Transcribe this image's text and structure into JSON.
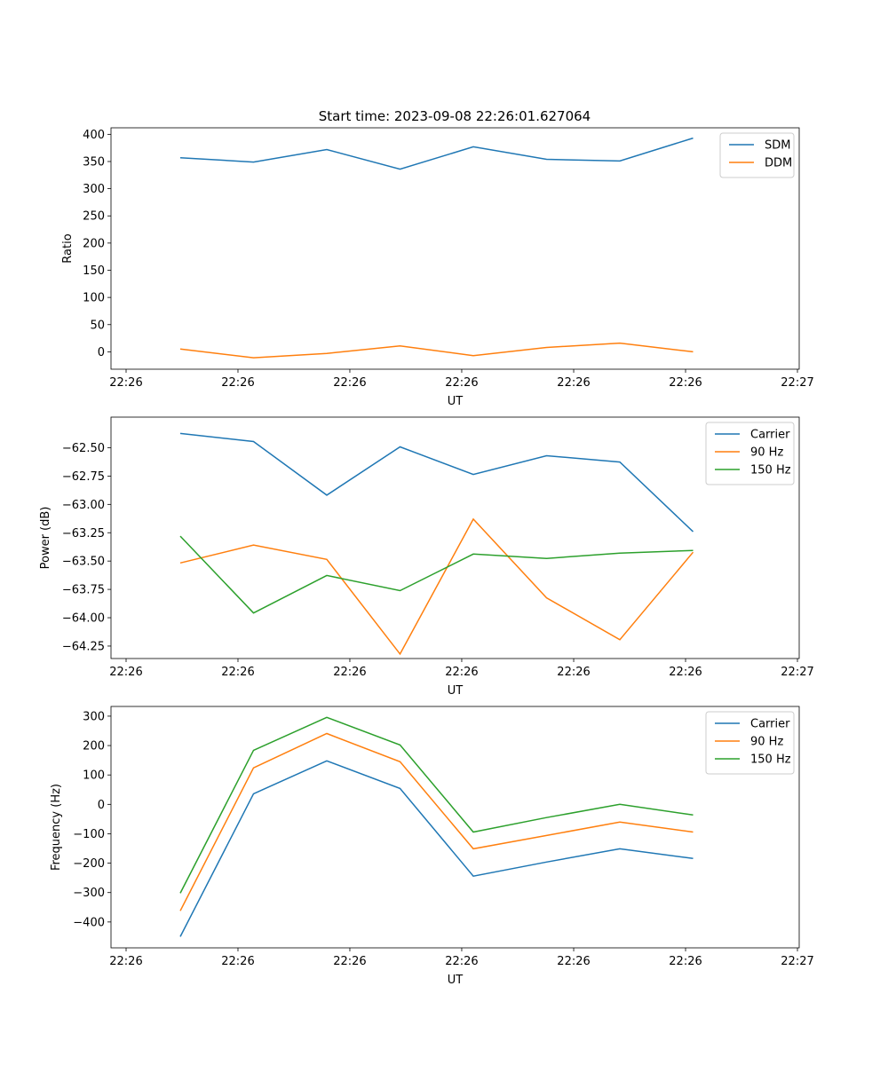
{
  "title": "Start time: 2023-09-08 22:26:01.627064",
  "colors": {
    "blue": "#1f77b4",
    "orange": "#ff7f0e",
    "green": "#2ca02c"
  },
  "chart_data": [
    {
      "type": "line",
      "xlabel": "UT",
      "ylabel": "Ratio",
      "x": [
        0,
        1,
        2,
        3,
        4,
        5,
        6,
        7
      ],
      "xlim": [
        -0.945,
        8.448
      ],
      "xticks": [
        -0.739,
        0.788,
        2.315,
        3.842,
        5.37,
        6.897,
        8.424
      ],
      "xtick_labels": [
        "22:26",
        "22:26",
        "22:26",
        "22:26",
        "22:26",
        "22:26",
        "22:27"
      ],
      "ylim": [
        -32,
        412
      ],
      "yticks": [
        0,
        50,
        100,
        150,
        200,
        250,
        300,
        350,
        400
      ],
      "ytick_labels": [
        "0",
        "50",
        "100",
        "150",
        "200",
        "250",
        "300",
        "350",
        "400"
      ],
      "legend": "top-right",
      "series": [
        {
          "name": "SDM",
          "color": "#1f77b4",
          "values": [
            357,
            349,
            372,
            336,
            377,
            354,
            351,
            393
          ]
        },
        {
          "name": "DDM",
          "color": "#ff7f0e",
          "values": [
            5,
            -11,
            -3,
            11,
            -7,
            8,
            16,
            0
          ]
        }
      ]
    },
    {
      "type": "line",
      "xlabel": "UT",
      "ylabel": "Power (dB)",
      "x": [
        0,
        1,
        2,
        3,
        4,
        5,
        6,
        7
      ],
      "xlim": [
        -0.945,
        8.448
      ],
      "xticks": [
        -0.739,
        0.788,
        2.315,
        3.842,
        5.37,
        6.897,
        8.424
      ],
      "xtick_labels": [
        "22:26",
        "22:26",
        "22:26",
        "22:26",
        "22:26",
        "22:26",
        "22:27"
      ],
      "ylim": [
        -64.36,
        -62.23
      ],
      "yticks": [
        -62.5,
        -62.75,
        -63.0,
        -63.25,
        -63.5,
        -63.75,
        -64.0,
        -64.25
      ],
      "ytick_labels": [
        "−62.50",
        "−62.75",
        "−63.00",
        "−63.25",
        "−63.50",
        "−63.75",
        "−64.00",
        "−64.25"
      ],
      "legend": "top-right",
      "series": [
        {
          "name": "Carrier",
          "color": "#1f77b4",
          "values": [
            -62.374,
            -62.445,
            -62.918,
            -62.492,
            -62.736,
            -62.571,
            -62.626,
            -63.241
          ]
        },
        {
          "name": "90 Hz",
          "color": "#ff7f0e",
          "values": [
            -63.517,
            -63.359,
            -63.485,
            -64.32,
            -63.13,
            -63.824,
            -64.194,
            -63.422
          ]
        },
        {
          "name": "150 Hz",
          "color": "#2ca02c",
          "values": [
            -63.28,
            -63.958,
            -63.627,
            -63.761,
            -63.438,
            -63.477,
            -63.43,
            -63.406
          ]
        }
      ]
    },
    {
      "type": "line",
      "xlabel": "UT",
      "ylabel": "Frequency (Hz)",
      "x": [
        0,
        1,
        2,
        3,
        4,
        5,
        6,
        7
      ],
      "xlim": [
        -0.945,
        8.448
      ],
      "xticks": [
        -0.739,
        0.788,
        2.315,
        3.842,
        5.37,
        6.897,
        8.424
      ],
      "xtick_labels": [
        "22:26",
        "22:26",
        "22:26",
        "22:26",
        "22:26",
        "22:26",
        "22:27"
      ],
      "ylim": [
        -488,
        333
      ],
      "yticks": [
        300,
        200,
        100,
        0,
        -100,
        -200,
        -300,
        -400
      ],
      "ytick_labels": [
        "300",
        "200",
        "100",
        "0",
        "−100",
        "−200",
        "−300",
        "−400"
      ],
      "legend": "top-right",
      "series": [
        {
          "name": "Carrier",
          "color": "#1f77b4",
          "values": [
            -450,
            36,
            148,
            54,
            -244,
            -196,
            -151,
            -184
          ]
        },
        {
          "name": "90 Hz",
          "color": "#ff7f0e",
          "values": [
            -362,
            124,
            241,
            145,
            -151,
            -106,
            -60,
            -94
          ]
        },
        {
          "name": "150 Hz",
          "color": "#2ca02c",
          "values": [
            -302,
            184,
            296,
            202,
            -94,
            -45,
            0,
            -36
          ]
        }
      ]
    }
  ]
}
